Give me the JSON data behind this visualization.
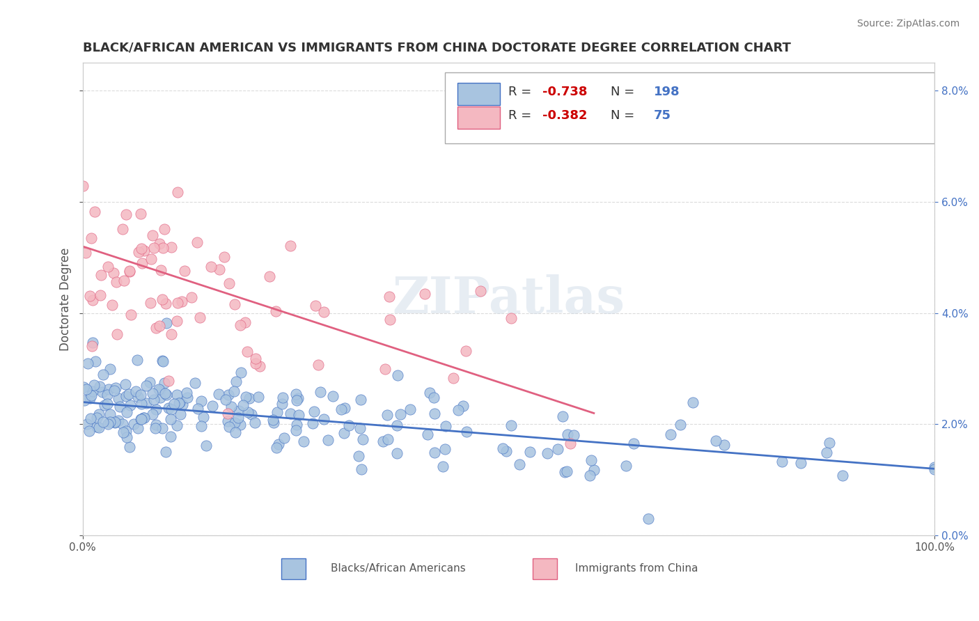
{
  "title": "BLACK/AFRICAN AMERICAN VS IMMIGRANTS FROM CHINA DOCTORATE DEGREE CORRELATION CHART",
  "source": "Source: ZipAtlas.com",
  "xlabel_ticks": [
    "0.0%",
    "100.0%"
  ],
  "ylabel": "Doctorate Degree",
  "right_yticks": [
    "0.0%",
    "2.0%",
    "4.0%",
    "6.0%",
    "8.0%"
  ],
  "blue_R": -0.738,
  "blue_N": 198,
  "pink_R": -0.382,
  "pink_N": 75,
  "blue_label": "Blacks/African Americans",
  "pink_label": "Immigrants from China",
  "blue_color": "#a8c4e0",
  "blue_line_color": "#4472c4",
  "pink_color": "#f4b8c1",
  "pink_line_color": "#e06080",
  "background_color": "#ffffff",
  "watermark": "ZIPatlas",
  "title_fontsize": 13,
  "legend_R_color": "#cc0000",
  "legend_N_color": "#4472c4",
  "seed_blue": 42,
  "seed_pink": 7,
  "xlim": [
    0,
    100
  ],
  "ylim": [
    0,
    8.5
  ],
  "blue_intercept": 2.4,
  "blue_slope": -0.012,
  "pink_intercept": 5.2,
  "pink_slope": -0.05
}
